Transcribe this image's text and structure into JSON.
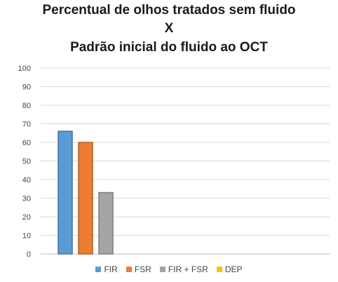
{
  "chart_data": {
    "type": "bar",
    "title_lines": [
      "Percentual de olhos tratados sem fluido",
      "X",
      "Padrão inicial do fluido ao OCT"
    ],
    "categories": [
      "FIR",
      "FSR",
      "FIR + FSR",
      "DEP"
    ],
    "values": [
      66,
      60,
      33,
      0
    ],
    "colors": [
      "#5b9bd5",
      "#ed7d31",
      "#a5a5a5",
      "#ffc000"
    ],
    "ylim": [
      0,
      100
    ],
    "yticks": [
      0,
      10,
      20,
      30,
      40,
      50,
      60,
      70,
      80,
      90,
      100
    ],
    "grid": true,
    "legend_position": "bottom"
  }
}
